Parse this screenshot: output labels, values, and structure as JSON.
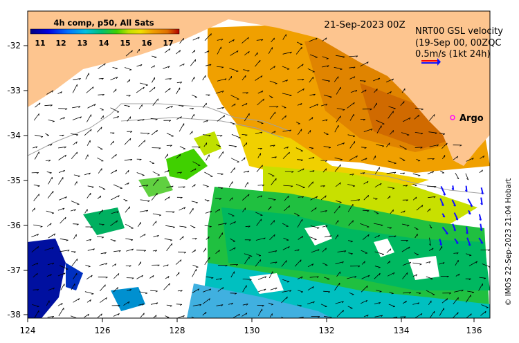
{
  "map": {
    "date_label": "21-Sep-2023 00Z",
    "legend": {
      "title": "4h comp, p50, All Sats",
      "ticks": [
        "11",
        "12",
        "13",
        "14",
        "15",
        "16",
        "17"
      ],
      "min": 10.5,
      "max": 17.5
    },
    "velocity_title": "NRT00 GSL velocity",
    "velocity_subtitle": "(19-Sep 00, 00ZQC",
    "velocity_scale": "0.5m/s (1kt 24h)",
    "argo_label": "Argo",
    "credit": "© IMOS 22-Sep-2023 21:04 Hobart",
    "x_ticks": [
      "124",
      "126",
      "128",
      "130",
      "132",
      "134",
      "136"
    ],
    "y_ticks": [
      "-32",
      "-33",
      "-34",
      "-35",
      "-36",
      "-37",
      "-38"
    ],
    "lon_range": [
      124,
      136.2
    ],
    "lat_range": [
      -38.05,
      -31.35
    ],
    "colors": {
      "land": "#fdc58f",
      "missing": "#ffffff",
      "argo": "#ff00ff",
      "arrow_blue": "#1010ff",
      "arrow_red": "#ff0000"
    }
  }
}
